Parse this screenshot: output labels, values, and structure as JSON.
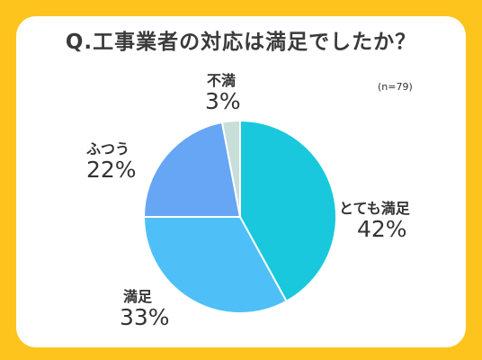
{
  "title": "Q.工事業者の対応は満足でしたか？",
  "sample_note": "(n=79)",
  "colors": {
    "background": "#fcc41c",
    "card": "#ffffff"
  },
  "chart_data": {
    "type": "pie",
    "title": "Q.工事業者の対応は満足でしたか？",
    "slices": [
      {
        "label": "とても満足",
        "value": 42,
        "value_label": "42%",
        "color": "#19c8dc"
      },
      {
        "label": "満足",
        "value": 33,
        "value_label": "33%",
        "color": "#4ec0f7"
      },
      {
        "label": "ふつう",
        "value": 22,
        "value_label": "22%",
        "color": "#67a5f5"
      },
      {
        "label": "不満",
        "value": 3,
        "value_label": "3%",
        "color": "#c8ded8"
      }
    ]
  }
}
